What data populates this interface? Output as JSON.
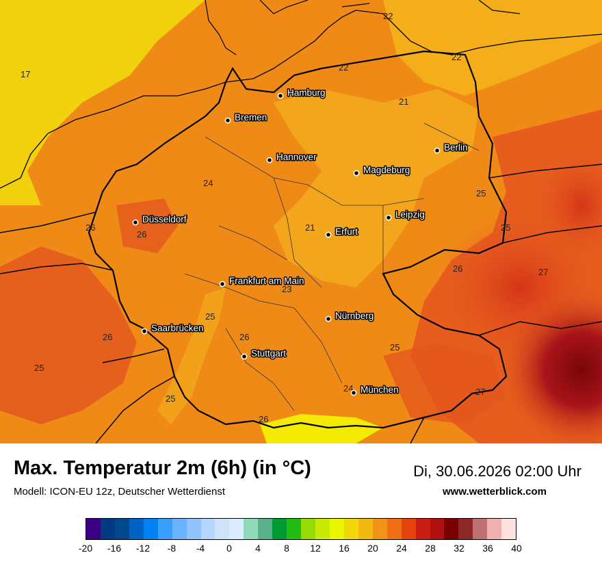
{
  "map": {
    "cities": [
      {
        "name": "Hamburg"
      },
      {
        "name": "Bremen"
      },
      {
        "name": "Berlin"
      },
      {
        "name": "Hannover"
      },
      {
        "name": "Magdeburg"
      },
      {
        "name": "Leipzig"
      },
      {
        "name": "Düsseldorf"
      },
      {
        "name": "Erfurt"
      },
      {
        "name": "Frankfurt am Main"
      },
      {
        "name": "Nürnberg"
      },
      {
        "name": "Saarbrücken"
      },
      {
        "name": "Stuttgart"
      },
      {
        "name": "München"
      }
    ],
    "isolines": [
      "17",
      "22",
      "22",
      "22",
      "21",
      "24",
      "26",
      "26",
      "21",
      "25",
      "25",
      "26",
      "27",
      "23",
      "25",
      "26",
      "26",
      "25",
      "25",
      "24",
      "27",
      "25",
      "26"
    ],
    "colors": {
      "sea_yellow": "#f1d10e",
      "land_orange": "#f08a16",
      "land_light": "#f3a81c",
      "land_dark": "#e4581e",
      "land_red": "#c6241c",
      "land_darkred": "#820c0c",
      "south_yellow": "#f5f400"
    }
  },
  "footer": {
    "title": "Max. Temperatur 2m (6h) (in °C)",
    "date": "Di, 30.06.2026 02:00 Uhr",
    "model": "Modell: ICON-EU 12z, Deutscher Wetterdienst",
    "site": "www.wetterblick.com"
  },
  "colorscale": {
    "colors": [
      "#3b0084",
      "#003a80",
      "#00488e",
      "#0062c4",
      "#0082f0",
      "#3aa0ff",
      "#6ab4ff",
      "#90c4ff",
      "#b4d6ff",
      "#cfe3f8",
      "#dcecff",
      "#8fd8b8",
      "#5aaf8c",
      "#009a34",
      "#22bc14",
      "#96da06",
      "#c8ea04",
      "#eaf500",
      "#f2d80a",
      "#f2ba10",
      "#f29216",
      "#f07016",
      "#e6420e",
      "#c81c14",
      "#b01010",
      "#7a0000",
      "#8c2828",
      "#c07070",
      "#f0b0b0",
      "#fde0e0"
    ],
    "ticks": [
      "-20",
      "-16",
      "-12",
      "-8",
      "-4",
      "0",
      "4",
      "8",
      "12",
      "16",
      "20",
      "24",
      "28",
      "32",
      "36",
      "40"
    ]
  }
}
